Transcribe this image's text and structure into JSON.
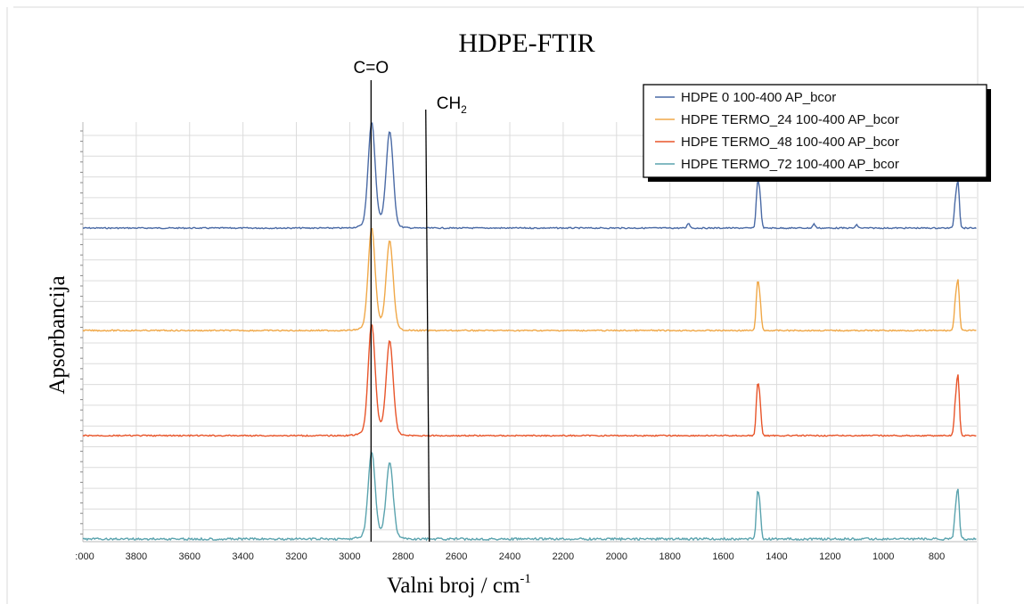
{
  "chart_data": {
    "type": "line",
    "title": "HDPE-FTIR",
    "xlabel": "Valni broj / cm",
    "xlabel_sup": "-1",
    "ylabel": "Apsorbancija",
    "x_reversed": true,
    "xlim": [
      4000,
      650
    ],
    "x_ticks": [
      ":000",
      "3800",
      "3600",
      "3400",
      "3200",
      "3000",
      "2800",
      "2600",
      "2400",
      "2200",
      "2000",
      "1800",
      "1600",
      "1400",
      "1200",
      "1000",
      "800"
    ],
    "annotations": [
      {
        "text": "C=O",
        "x": 2920
      },
      {
        "text": "CH",
        "sub": "2",
        "x": 2715
      }
    ],
    "legend_position": "top-right",
    "grid": true,
    "series": [
      {
        "name": "HDPE 0 100-400 AP_bcor",
        "color": "#4a6aa5",
        "peaks": [
          {
            "x": 2918,
            "h": 1.0
          },
          {
            "x": 2850,
            "h": 0.92
          },
          {
            "x": 1730,
            "h": 0.05
          },
          {
            "x": 1472,
            "h": 0.4
          },
          {
            "x": 1463,
            "h": 0.3
          },
          {
            "x": 1260,
            "h": 0.04
          },
          {
            "x": 1100,
            "h": 0.03
          },
          {
            "x": 720,
            "h": 0.45
          },
          {
            "x": 730,
            "h": 0.25
          }
        ]
      },
      {
        "name": "HDPE TERMO_24 100-400 AP_bcor",
        "color": "#f0a848",
        "peaks": [
          {
            "x": 2918,
            "h": 1.0
          },
          {
            "x": 2850,
            "h": 0.88
          },
          {
            "x": 1472,
            "h": 0.45
          },
          {
            "x": 1463,
            "h": 0.3
          },
          {
            "x": 720,
            "h": 0.5
          },
          {
            "x": 730,
            "h": 0.28
          }
        ]
      },
      {
        "name": "HDPE TERMO_48 100-400 AP_bcor",
        "color": "#e8552a",
        "peaks": [
          {
            "x": 2918,
            "h": 1.0
          },
          {
            "x": 2850,
            "h": 0.85
          },
          {
            "x": 1472,
            "h": 0.43
          },
          {
            "x": 1463,
            "h": 0.3
          },
          {
            "x": 720,
            "h": 0.55
          },
          {
            "x": 730,
            "h": 0.28
          }
        ]
      },
      {
        "name": "HDPE TERMO_72 100-400 AP_bcor",
        "color": "#5aa3ae",
        "peaks": [
          {
            "x": 2918,
            "h": 1.0
          },
          {
            "x": 2850,
            "h": 0.88
          },
          {
            "x": 1472,
            "h": 0.5
          },
          {
            "x": 1463,
            "h": 0.35
          },
          {
            "x": 720,
            "h": 0.58
          },
          {
            "x": 730,
            "h": 0.3
          }
        ]
      }
    ]
  }
}
